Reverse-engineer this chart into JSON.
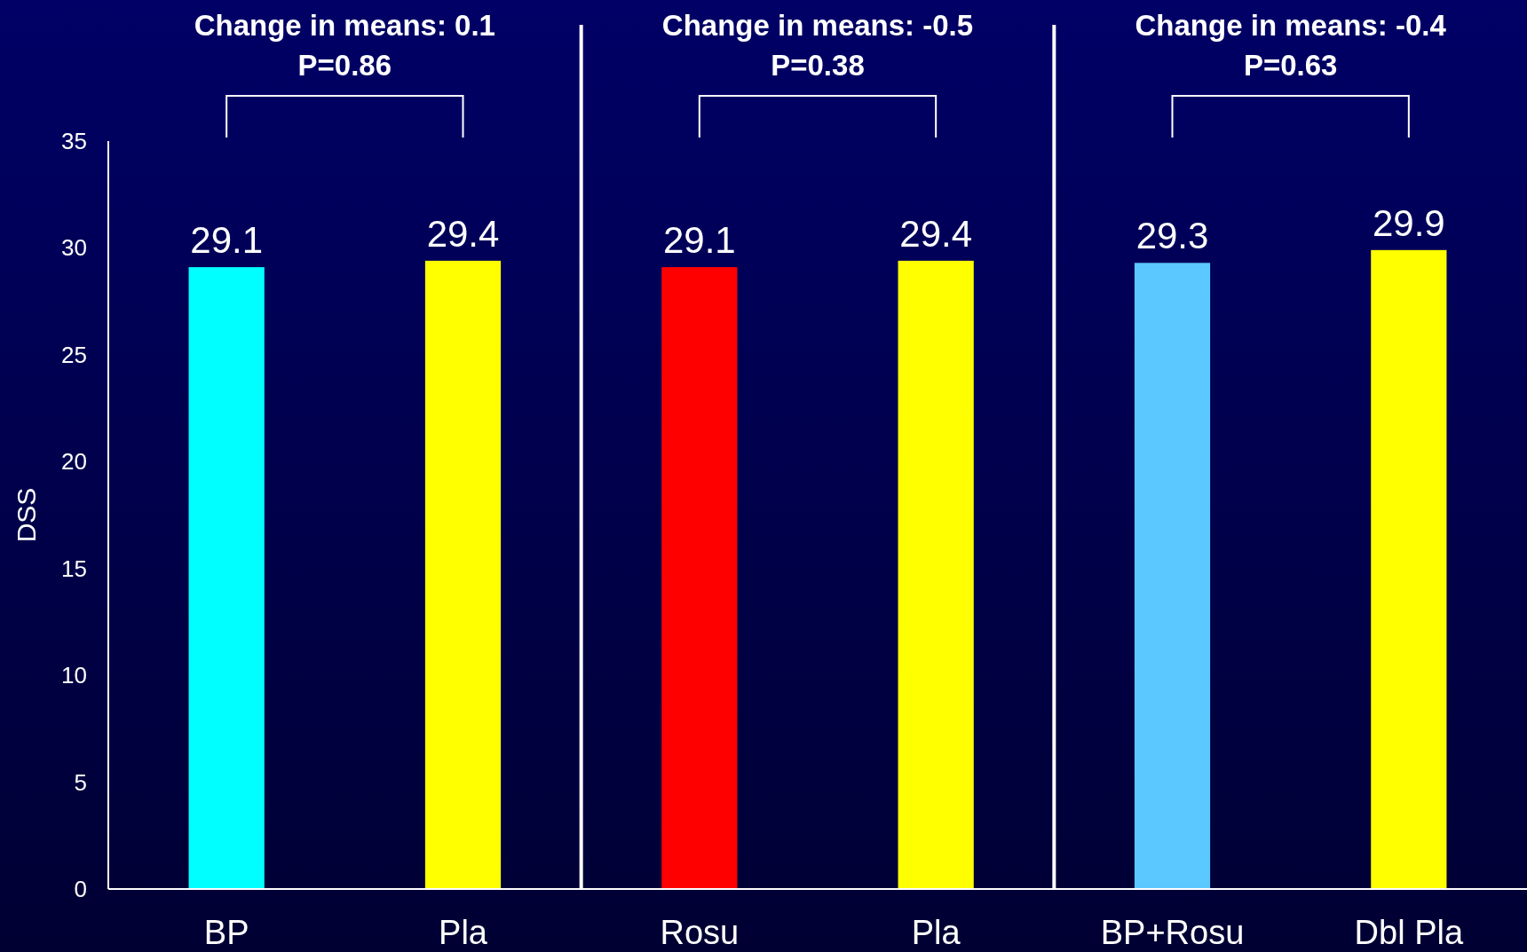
{
  "chart_data": {
    "type": "bar",
    "ylabel": "DSS",
    "categories": [
      "BP",
      "Pla",
      "Rosu",
      "Pla",
      "BP+Rosu",
      "Dbl Pla"
    ],
    "values": [
      29.1,
      29.4,
      29.1,
      29.4,
      29.3,
      29.9
    ],
    "colors": [
      "#00ffff",
      "#ffff00",
      "#ff0000",
      "#ffff00",
      "#5bc8ff",
      "#ffff00"
    ],
    "ylim": [
      0,
      35
    ],
    "yticks": [
      0,
      5,
      10,
      15,
      20,
      25,
      30,
      35
    ],
    "data_labels": true,
    "annotations": [
      "Change in means: 0.1",
      "P=0.86",
      "Change in means: -0.5",
      "P=0.38",
      "Change in means: -0.4",
      "P=0.63"
    ]
  }
}
